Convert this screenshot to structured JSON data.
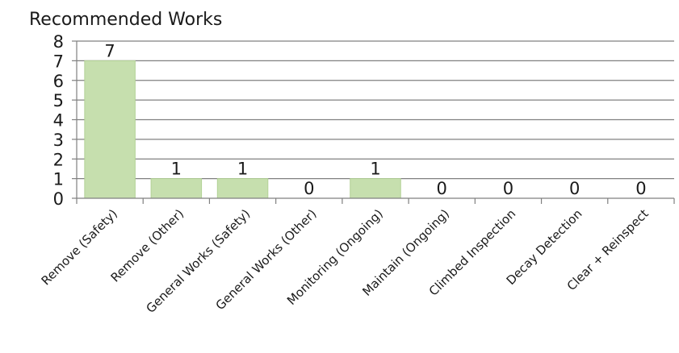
{
  "chart_data": {
    "type": "bar",
    "title": "Recommended Works",
    "categories": [
      "Remove (Safety)",
      "Remove (Other)",
      "General Works (Safety)",
      "General Works (Other)",
      "Monitoring (Ongoing)",
      "Maintain (Ongoing)",
      "Climbed Inspection",
      "Decay Detection",
      "Clear + Reinspect"
    ],
    "values": [
      7,
      1,
      1,
      0,
      1,
      0,
      0,
      0,
      0
    ],
    "ylim": [
      0,
      8
    ],
    "yticks": [
      0,
      1,
      2,
      3,
      4,
      5,
      6,
      7,
      8
    ],
    "xlabel": "",
    "ylabel": "",
    "grid": true,
    "data_labels": true,
    "bar_color": "#c6dfae",
    "bar_edge_color": "#b3d196",
    "grid_color": "#808080",
    "text_color": "#1a1a1a"
  }
}
